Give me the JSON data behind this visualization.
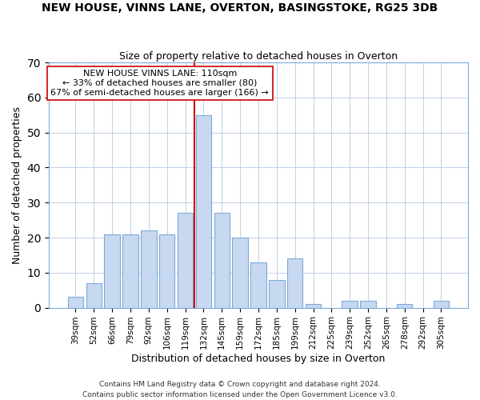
{
  "title": "NEW HOUSE, VINNS LANE, OVERTON, BASINGSTOKE, RG25 3DB",
  "subtitle": "Size of property relative to detached houses in Overton",
  "xlabel": "Distribution of detached houses by size in Overton",
  "ylabel": "Number of detached properties",
  "bar_labels": [
    "39sqm",
    "52sqm",
    "66sqm",
    "79sqm",
    "92sqm",
    "106sqm",
    "119sqm",
    "132sqm",
    "145sqm",
    "159sqm",
    "172sqm",
    "185sqm",
    "199sqm",
    "212sqm",
    "225sqm",
    "239sqm",
    "252sqm",
    "265sqm",
    "278sqm",
    "292sqm",
    "305sqm"
  ],
  "bar_values": [
    3,
    7,
    21,
    21,
    22,
    21,
    27,
    55,
    27,
    20,
    13,
    8,
    14,
    1,
    0,
    2,
    2,
    0,
    1,
    0,
    2
  ],
  "bar_color": "#c8d8f0",
  "bar_edgecolor": "#7aaad8",
  "ylim": [
    0,
    70
  ],
  "yticks": [
    0,
    10,
    20,
    30,
    40,
    50,
    60,
    70
  ],
  "vline_color": "#cc0000",
  "annotation_lines": [
    "NEW HOUSE VINNS LANE: 110sqm",
    "← 33% of detached houses are smaller (80)",
    "67% of semi-detached houses are larger (166) →"
  ],
  "footer1": "Contains HM Land Registry data © Crown copyright and database right 2024.",
  "footer2": "Contains public sector information licensed under the Open Government Licence v3.0."
}
